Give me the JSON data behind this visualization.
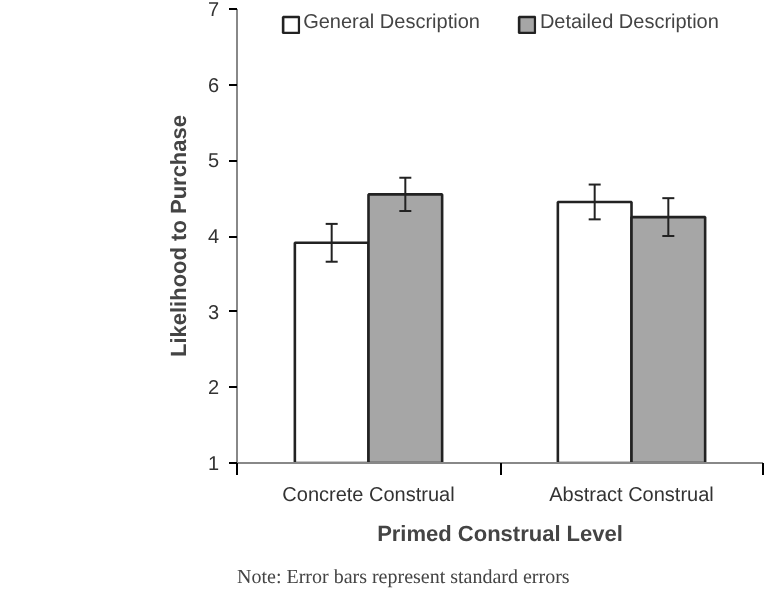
{
  "chart_data": {
    "type": "bar",
    "xlabel": "Primed Construal Level",
    "ylabel": "Likelihood to Purchase",
    "categories": [
      "Concrete Construal",
      "Abstract Construal"
    ],
    "series": [
      {
        "name": "General Description",
        "color": "#ffffff",
        "values": [
          3.91,
          4.45
        ],
        "errors": [
          0.25,
          0.23
        ]
      },
      {
        "name": "Detailed Description",
        "color": "#a6a6a6",
        "values": [
          4.55,
          4.25
        ],
        "errors": [
          0.22,
          0.25
        ]
      }
    ],
    "ylim": [
      1,
      7
    ],
    "yticks": [
      1,
      2,
      3,
      4,
      5,
      6,
      7
    ],
    "grid": false,
    "legend": "top",
    "annotations": [
      "Note: Error bars represent standard errors"
    ]
  }
}
